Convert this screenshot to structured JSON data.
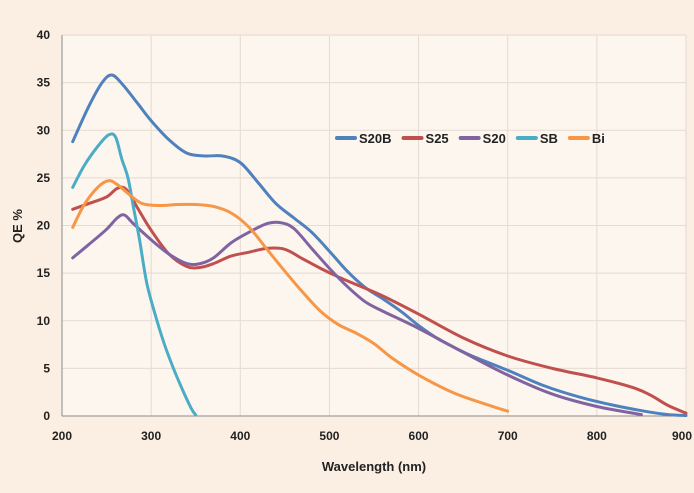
{
  "chart_data": {
    "type": "line",
    "title": "",
    "xlabel": "Wavelength (nm)",
    "ylabel": "QE %",
    "xlim": [
      200,
      900
    ],
    "ylim": [
      0,
      40
    ],
    "xticks": [
      200,
      300,
      400,
      500,
      600,
      700,
      800,
      900
    ],
    "yticks": [
      0,
      5,
      10,
      15,
      20,
      25,
      30,
      35,
      40
    ],
    "grid": "vertical and horizontal",
    "legend_position": "right-center",
    "series": [
      {
        "name": "S20B",
        "color": "#4f81bd",
        "points": [
          [
            212,
            28.8
          ],
          [
            230,
            32.5
          ],
          [
            245,
            35
          ],
          [
            256,
            35.8
          ],
          [
            268,
            34.8
          ],
          [
            285,
            32.8
          ],
          [
            300,
            31
          ],
          [
            320,
            29
          ],
          [
            340,
            27.6
          ],
          [
            360,
            27.3
          ],
          [
            380,
            27.3
          ],
          [
            400,
            26.6
          ],
          [
            420,
            24.5
          ],
          [
            440,
            22.3
          ],
          [
            460,
            20.8
          ],
          [
            480,
            19.3
          ],
          [
            500,
            17.3
          ],
          [
            520,
            15.2
          ],
          [
            540,
            13.5
          ],
          [
            560,
            12.3
          ],
          [
            580,
            11
          ],
          [
            600,
            9.5
          ],
          [
            620,
            8.2
          ],
          [
            640,
            7.2
          ],
          [
            660,
            6.3
          ],
          [
            700,
            4.8
          ],
          [
            740,
            3.2
          ],
          [
            780,
            2
          ],
          [
            820,
            1.1
          ],
          [
            860,
            0.4
          ],
          [
            880,
            0.15
          ],
          [
            900,
            0.05
          ]
        ]
      },
      {
        "name": "S25",
        "color": "#c0504d",
        "points": [
          [
            212,
            21.7
          ],
          [
            230,
            22.3
          ],
          [
            250,
            23
          ],
          [
            262,
            23.9
          ],
          [
            272,
            23.8
          ],
          [
            285,
            21.8
          ],
          [
            300,
            19.5
          ],
          [
            320,
            17
          ],
          [
            340,
            15.7
          ],
          [
            355,
            15.6
          ],
          [
            370,
            16
          ],
          [
            390,
            16.8
          ],
          [
            410,
            17.2
          ],
          [
            430,
            17.6
          ],
          [
            450,
            17.5
          ],
          [
            470,
            16.5
          ],
          [
            490,
            15.5
          ],
          [
            510,
            14.6
          ],
          [
            530,
            13.8
          ],
          [
            560,
            12.6
          ],
          [
            600,
            10.7
          ],
          [
            650,
            8.2
          ],
          [
            700,
            6.3
          ],
          [
            750,
            5
          ],
          [
            800,
            4
          ],
          [
            840,
            3
          ],
          [
            860,
            2.2
          ],
          [
            880,
            1.1
          ],
          [
            900,
            0.3
          ]
        ]
      },
      {
        "name": "S20",
        "color": "#8064a2",
        "points": [
          [
            212,
            16.6
          ],
          [
            230,
            18
          ],
          [
            250,
            19.6
          ],
          [
            262,
            20.8
          ],
          [
            270,
            21.1
          ],
          [
            280,
            20.2
          ],
          [
            300,
            18.5
          ],
          [
            320,
            17
          ],
          [
            340,
            16
          ],
          [
            355,
            16
          ],
          [
            370,
            16.6
          ],
          [
            390,
            18.2
          ],
          [
            410,
            19.3
          ],
          [
            430,
            20.2
          ],
          [
            445,
            20.3
          ],
          [
            460,
            19.7
          ],
          [
            480,
            17.6
          ],
          [
            500,
            15.5
          ],
          [
            520,
            13.6
          ],
          [
            540,
            12
          ],
          [
            560,
            11
          ],
          [
            600,
            9.2
          ],
          [
            650,
            6.7
          ],
          [
            700,
            4.3
          ],
          [
            750,
            2.3
          ],
          [
            800,
            1
          ],
          [
            850,
            0.15
          ]
        ]
      },
      {
        "name": "SB",
        "color": "#4bacc6",
        "points": [
          [
            212,
            24
          ],
          [
            225,
            26.3
          ],
          [
            240,
            28.3
          ],
          [
            252,
            29.5
          ],
          [
            260,
            29.3
          ],
          [
            267,
            27
          ],
          [
            274,
            25
          ],
          [
            280,
            22
          ],
          [
            287,
            18.5
          ],
          [
            295,
            14
          ],
          [
            305,
            10.5
          ],
          [
            315,
            7.5
          ],
          [
            325,
            5
          ],
          [
            335,
            2.8
          ],
          [
            345,
            0.8
          ],
          [
            350,
            0.1
          ]
        ]
      },
      {
        "name": "Bi",
        "color": "#f79646",
        "points": [
          [
            212,
            19.8
          ],
          [
            225,
            22.2
          ],
          [
            240,
            24
          ],
          [
            252,
            24.7
          ],
          [
            262,
            24.3
          ],
          [
            275,
            23.3
          ],
          [
            290,
            22.3
          ],
          [
            310,
            22.1
          ],
          [
            330,
            22.2
          ],
          [
            350,
            22.2
          ],
          [
            370,
            22
          ],
          [
            390,
            21.3
          ],
          [
            410,
            19.8
          ],
          [
            430,
            17.5
          ],
          [
            450,
            15.2
          ],
          [
            470,
            13
          ],
          [
            490,
            11
          ],
          [
            510,
            9.6
          ],
          [
            530,
            8.7
          ],
          [
            550,
            7.6
          ],
          [
            570,
            6.1
          ],
          [
            600,
            4.3
          ],
          [
            640,
            2.4
          ],
          [
            680,
            1.1
          ],
          [
            700,
            0.5
          ]
        ]
      }
    ]
  }
}
